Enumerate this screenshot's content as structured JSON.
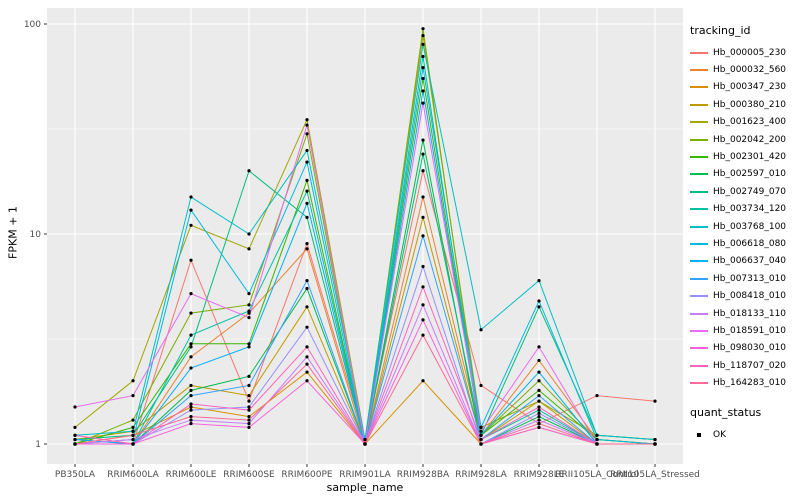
{
  "chart_data": {
    "type": "line",
    "title": "",
    "xlabel": "sample_name",
    "ylabel": "FPKM + 1",
    "y_scale": "log10",
    "ylim": [
      1,
      100
    ],
    "y_ticks": [
      1,
      10,
      100
    ],
    "grid": true,
    "panel_bg": "#EBEBEB",
    "grid_color": "#FFFFFF",
    "point_color": "#000000",
    "legend_position": "right",
    "legend_title": "tracking_id",
    "quant_legend": {
      "title": "quant_status",
      "items": [
        "OK"
      ]
    },
    "categories": [
      "PB350LA",
      "RRIM600LA",
      "RRIM600LE",
      "RRIM600SE",
      "RRIM600PE",
      "RRIM901LA",
      "RRIM928BA",
      "RRIM928LA",
      "RRIM928LE",
      "RRII105LA_Control",
      "RRII105LA_Stressed"
    ],
    "series": [
      {
        "name": "Hb_000005_230",
        "color": "#F8766D",
        "values": [
          1.1,
          1.0,
          7.5,
          1.6,
          9.0,
          1.05,
          20,
          1.9,
          1.25,
          1.7,
          1.6
        ]
      },
      {
        "name": "Hb_000032_560",
        "color": "#EA8331",
        "values": [
          1.05,
          1.0,
          2.6,
          4.2,
          8.5,
          1.0,
          15,
          1.1,
          2.5,
          1.05,
          1.0
        ]
      },
      {
        "name": "Hb_000347_230",
        "color": "#D89000",
        "values": [
          1.0,
          1.1,
          1.5,
          1.35,
          2.2,
          1.0,
          2.0,
          1.0,
          1.2,
          1.0,
          1.0
        ]
      },
      {
        "name": "Hb_000380_210",
        "color": "#C09B00",
        "values": [
          1.05,
          1.15,
          1.9,
          1.7,
          4.5,
          1.0,
          12,
          1.05,
          1.6,
          1.0,
          1.0
        ]
      },
      {
        "name": "Hb_001623_400",
        "color": "#A3A500",
        "values": [
          1.2,
          2.0,
          11,
          8.5,
          35,
          1.05,
          88,
          1.2,
          1.6,
          1.1,
          1.05
        ]
      },
      {
        "name": "Hb_002042_200",
        "color": "#7CAE00",
        "values": [
          1.0,
          1.3,
          4.2,
          4.6,
          30,
          1.0,
          95,
          1.1,
          2.0,
          1.05,
          1.0
        ]
      },
      {
        "name": "Hb_002301_420",
        "color": "#39B600",
        "values": [
          1.0,
          1.2,
          3.0,
          3.0,
          18,
          1.0,
          55,
          1.1,
          1.8,
          1.05,
          1.0
        ]
      },
      {
        "name": "Hb_002597_010",
        "color": "#00BB4E",
        "values": [
          1.0,
          1.0,
          1.8,
          2.1,
          5.5,
          1.0,
          28,
          1.0,
          1.35,
          1.0,
          1.0
        ]
      },
      {
        "name": "Hb_002749_070",
        "color": "#00BF7D",
        "values": [
          1.05,
          1.1,
          2.9,
          20,
          12,
          1.0,
          24,
          1.1,
          4.5,
          1.1,
          1.05
        ]
      },
      {
        "name": "Hb_003734_120",
        "color": "#00C1A3",
        "values": [
          1.0,
          1.0,
          3.3,
          4.3,
          16,
          1.0,
          70,
          1.05,
          1.45,
          1.0,
          1.0
        ]
      },
      {
        "name": "Hb_003768_100",
        "color": "#00BFC4",
        "values": [
          1.1,
          1.15,
          15,
          10,
          25,
          1.05,
          80,
          3.5,
          6.0,
          1.1,
          1.05
        ]
      },
      {
        "name": "Hb_006618_080",
        "color": "#00BAE0",
        "values": [
          1.0,
          1.05,
          13,
          5.2,
          22,
          1.0,
          62,
          1.2,
          4.8,
          1.05,
          1.0
        ]
      },
      {
        "name": "Hb_006637_040",
        "color": "#00B0F6",
        "values": [
          1.05,
          1.0,
          2.3,
          2.9,
          14,
          1.0,
          48,
          1.1,
          2.2,
          1.0,
          1.0
        ]
      },
      {
        "name": "Hb_007313_010",
        "color": "#35A2FF",
        "values": [
          1.0,
          1.0,
          1.7,
          1.9,
          6.0,
          1.0,
          9.8,
          1.05,
          1.7,
          1.0,
          1.0
        ]
      },
      {
        "name": "Hb_008418_010",
        "color": "#9590FF",
        "values": [
          1.0,
          1.0,
          1.45,
          1.5,
          3.6,
          1.0,
          7.0,
          1.0,
          1.4,
          1.0,
          1.0
        ]
      },
      {
        "name": "Hb_018133_110",
        "color": "#C77CFF",
        "values": [
          1.0,
          1.05,
          1.3,
          1.25,
          2.6,
          1.0,
          4.6,
          1.0,
          1.3,
          1.0,
          1.0
        ]
      },
      {
        "name": "Hb_018591_010",
        "color": "#E76BF3",
        "values": [
          1.5,
          1.7,
          5.2,
          4.0,
          33,
          1.0,
          42,
          1.15,
          2.9,
          1.0,
          1.0
        ]
      },
      {
        "name": "Hb_098030_010",
        "color": "#FA62DB",
        "values": [
          1.0,
          1.0,
          1.25,
          1.2,
          2.0,
          1.0,
          3.9,
          1.0,
          1.2,
          1.0,
          1.0
        ]
      },
      {
        "name": "Hb_118707_020",
        "color": "#FF62BC",
        "values": [
          1.1,
          1.0,
          1.55,
          1.45,
          2.9,
          1.0,
          5.6,
          1.05,
          1.5,
          1.0,
          1.0
        ]
      },
      {
        "name": "Hb_164283_010",
        "color": "#FF6A98",
        "values": [
          1.0,
          1.1,
          1.35,
          1.3,
          2.4,
          1.0,
          3.3,
          1.0,
          1.25,
          1.0,
          1.0
        ]
      }
    ]
  }
}
